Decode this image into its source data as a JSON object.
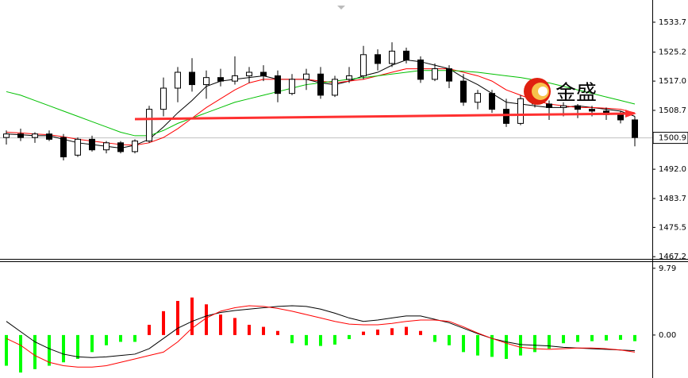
{
  "chart_data": [
    {
      "type": "candlestick",
      "watermark": "金盛",
      "ylim": [
        1466.8,
        1540.0
      ],
      "yticks": [
        1533.7,
        1525.2,
        {
          "value": 1517,
          "label": "1517.0"
        },
        1508.7,
        {
          "value": 1492,
          "label": "1492.0"
        },
        1483.7,
        1475.5,
        1467.2
      ],
      "last_price": 1500.9,
      "up_color": "#ffffff",
      "down_color": "#000000",
      "open": [
        1501,
        1502,
        1501,
        1502,
        1501,
        1496,
        1500.5,
        1497.5,
        1499.5,
        1497,
        1500,
        1509,
        1515,
        1519.5,
        1516,
        1518,
        1517,
        1518.5,
        1519.5,
        1518.5,
        1513.5,
        1517.5,
        1519,
        1513,
        1517.5,
        1518.5,
        1524.5,
        1522,
        1525.5,
        1523,
        1517.5,
        1520.5,
        1517,
        1511,
        1513.5,
        1509,
        1505,
        1512,
        1510.5,
        1509.5,
        1510,
        1509,
        1508.5,
        1507.5,
        1506
      ],
      "high": [
        1503,
        1503.5,
        1502.5,
        1503,
        1502,
        1501,
        1501.5,
        1500,
        1500,
        1500.5,
        1510,
        1518,
        1521,
        1523.5,
        1520,
        1520.5,
        1524,
        1521,
        1521.5,
        1520,
        1519,
        1520.5,
        1521,
        1518.5,
        1521,
        1527,
        1526,
        1528,
        1526.5,
        1524,
        1522,
        1521.5,
        1519,
        1514.5,
        1514.5,
        1512,
        1513,
        1514,
        1511.5,
        1511,
        1510.5,
        1510,
        1509.5,
        1508.5,
        1507
      ],
      "low": [
        1499,
        1500,
        1499.5,
        1500,
        1494.5,
        1495.5,
        1497,
        1496.5,
        1496.5,
        1496.5,
        1499.5,
        1507,
        1511,
        1514,
        1512,
        1515.5,
        1516,
        1516.5,
        1517,
        1511,
        1513,
        1514.5,
        1512,
        1512.5,
        1516.5,
        1517.5,
        1520,
        1521,
        1522,
        1516.5,
        1517,
        1515,
        1510,
        1509,
        1508,
        1504,
        1504.5,
        1509.5,
        1506,
        1507,
        1506.5,
        1507,
        1506,
        1505,
        1498.5
      ],
      "close": [
        1502,
        1501,
        1502,
        1500.5,
        1495.5,
        1500.5,
        1497.5,
        1499.5,
        1497,
        1500,
        1509,
        1515,
        1519.5,
        1516,
        1518,
        1517,
        1518.5,
        1519.5,
        1518.5,
        1513.5,
        1517.5,
        1519,
        1513,
        1517.5,
        1518.5,
        1524.5,
        1522,
        1525.5,
        1523,
        1517.5,
        1520.5,
        1517,
        1511,
        1513.5,
        1509,
        1505,
        1512,
        1510.5,
        1509.5,
        1510,
        1509,
        1508.5,
        1507.5,
        1506,
        1501
      ],
      "series": [
        {
          "color": "#000000",
          "values": [
            1502,
            1501.8,
            1501.5,
            1501.5,
            1500.5,
            1499.5,
            1499,
            1498.5,
            1498,
            1498.8,
            1500.5,
            1504,
            1508,
            1511.5,
            1515.5,
            1517,
            1517.5,
            1518,
            1518.5,
            1517.5,
            1517.5,
            1517.5,
            1516.5,
            1516,
            1517,
            1518.5,
            1519.5,
            1521.5,
            1523,
            1522.5,
            1521.5,
            1520.5,
            1518,
            1516,
            1513.5,
            1511,
            1510.5,
            1510,
            1509.5,
            1509.5,
            1510,
            1509.5,
            1509,
            1508.5,
            1507
          ]
        },
        {
          "color": "#ff0000",
          "values": [
            1502.5,
            1502.3,
            1502,
            1501.8,
            1501.2,
            1500.5,
            1500,
            1499.5,
            1499,
            1498.8,
            1499.5,
            1501,
            1503.5,
            1506.5,
            1509.5,
            1512,
            1514.5,
            1516.5,
            1517.5,
            1517.5,
            1517.5,
            1517.5,
            1517,
            1516.5,
            1517,
            1517.5,
            1518.5,
            1519.5,
            1520.5,
            1520.5,
            1520.5,
            1520.5,
            1519.5,
            1518.5,
            1517,
            1514.5,
            1513,
            1511.5,
            1510.5,
            1510,
            1509.5,
            1509.5,
            1509.3,
            1509,
            1508
          ]
        },
        {
          "color": "#00c000",
          "values": [
            1514,
            1513,
            1511.5,
            1510,
            1508.5,
            1507,
            1505.5,
            1504,
            1502.5,
            1501.5,
            1501.5,
            1503,
            1505,
            1506.5,
            1508,
            1509.5,
            1511,
            1512,
            1513,
            1514,
            1515,
            1516,
            1516.5,
            1517,
            1517.5,
            1518,
            1518.5,
            1519,
            1519.5,
            1520,
            1520,
            1520,
            1519.8,
            1519.5,
            1519,
            1518.5,
            1518,
            1517.3,
            1516.5,
            1515.5,
            1514.5,
            1513.5,
            1512.5,
            1511.5,
            1510.5
          ]
        }
      ]
    },
    {
      "type": "macd",
      "ylim": [
        -6.3,
        10.7
      ],
      "yticks": [
        9.79,
        {
          "value": 0,
          "label": "0.00"
        }
      ],
      "positive_color": "#ff0000",
      "negative_color": "#00ff00",
      "histogram": [
        -4.5,
        -5.5,
        -5,
        -4.5,
        -4,
        -3.5,
        -2.5,
        -1.5,
        -1,
        -1,
        1.5,
        3.5,
        5,
        5.5,
        4.5,
        3,
        2.5,
        1.5,
        1.2,
        0.6,
        -1.2,
        -1.5,
        -1.6,
        -1.4,
        -0.6,
        0.5,
        0.8,
        1,
        1.2,
        0.6,
        -1,
        -1.5,
        -2.5,
        -3,
        -3.2,
        -3.5,
        -3,
        -2.5,
        -2,
        -1.2,
        -1,
        -0.9,
        -0.8,
        -0.7,
        -0.9
      ],
      "series": [
        {
          "color": "#000000",
          "values": [
            2,
            0.5,
            -1,
            -2,
            -2.8,
            -3.2,
            -3.3,
            -3.2,
            -3,
            -2.8,
            -2,
            -0.5,
            1,
            2,
            2.8,
            3.3,
            3.6,
            3.8,
            4,
            4.2,
            4.3,
            4.2,
            3.8,
            3.2,
            2.5,
            2,
            2.2,
            2.5,
            2.8,
            2.8,
            2.3,
            1.8,
            1,
            0.2,
            -0.5,
            -1,
            -1.4,
            -1.5,
            -1.6,
            -1.8,
            -1.9,
            -2,
            -2.1,
            -2.2,
            -2.3
          ]
        },
        {
          "color": "#ff0000",
          "values": [
            -0.5,
            -1.5,
            -3,
            -4,
            -4.5,
            -4.7,
            -4.7,
            -4.5,
            -4,
            -3.5,
            -3,
            -2.5,
            -1,
            1,
            2.5,
            3.5,
            4,
            4.3,
            4.2,
            3.9,
            3.5,
            3,
            2.5,
            2,
            1.6,
            1.5,
            1.5,
            1.7,
            2,
            2.2,
            2.2,
            2,
            1.2,
            0.3,
            -0.5,
            -1.2,
            -1.8,
            -2,
            -2.1,
            -2,
            -1.9,
            -1.9,
            -2,
            -2.2,
            -2.5
          ]
        }
      ]
    }
  ]
}
